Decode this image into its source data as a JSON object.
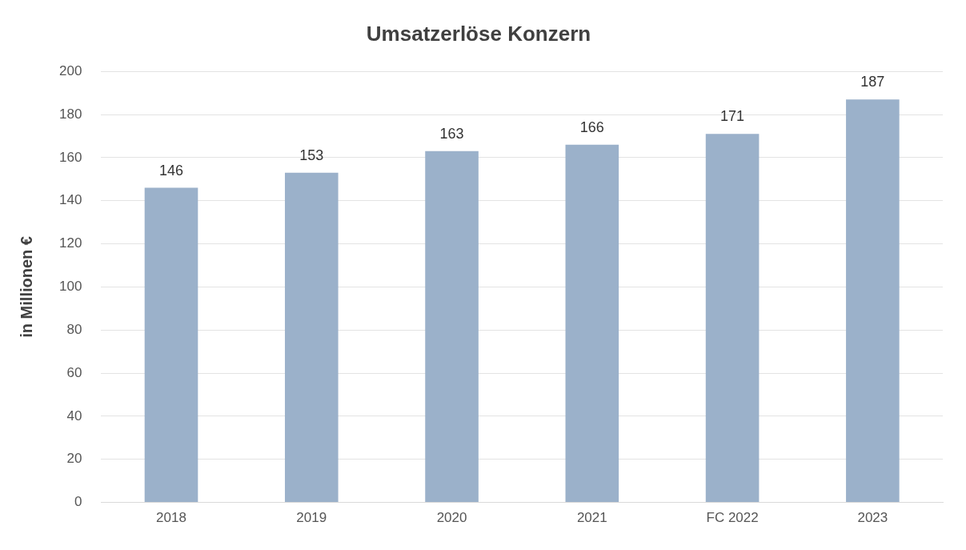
{
  "chart_data": {
    "type": "bar",
    "title": "Umsatzerlöse Konzern",
    "ylabel": "in Millionen €",
    "categories": [
      "2018",
      "2019",
      "2020",
      "2021",
      "FC 2022",
      "2023"
    ],
    "values": [
      146,
      153,
      163,
      166,
      171,
      187
    ],
    "color": "#9bb1ca",
    "ylim": [
      0,
      200
    ],
    "yticks": [
      0,
      20,
      40,
      60,
      80,
      100,
      120,
      140,
      160,
      180,
      200
    ],
    "grid": "y",
    "data_labels": true,
    "legend": false
  }
}
